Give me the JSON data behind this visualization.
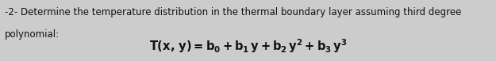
{
  "background_color": "#cccccc",
  "text_line1": "-2- Determine the temperature distribution in the thermal boundary layer assuming third degree",
  "text_line2": "polynomial:",
  "formula": "$\\mathbf{T}(\\mathbf{x, y}) = \\mathbf{b_0 + b_1}\\mathit{y}\\mathbf{ + b_2}\\mathit{y}^\\mathbf{2}\\mathbf{ + b_3}\\mathit{y}^\\mathbf{3}$",
  "text_color": "#111111",
  "font_size_text": 8.5,
  "font_size_formula": 10.5,
  "fig_width": 6.25,
  "fig_height": 0.77,
  "dpi": 100
}
